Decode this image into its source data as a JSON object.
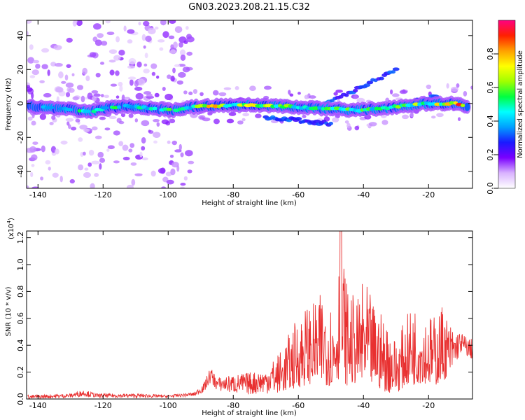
{
  "title": "GN03.2023.208.21.15.C32",
  "colors": {
    "series": "#e83030",
    "axis": "#000000"
  },
  "chart_data": [
    {
      "type": "heatmap",
      "xlabel": "Height of straight line (km)",
      "ylabel": "Frequency (Hz)",
      "xlim": [
        -143.5,
        -6.5
      ],
      "ylim": [
        -50,
        49
      ],
      "xticks": [
        -140,
        -120,
        -100,
        -80,
        -60,
        -40,
        -20
      ],
      "yticks": [
        -40,
        -20,
        0,
        20,
        40
      ],
      "colorbar": {
        "label": "Normalized spectral amplitude",
        "range": [
          0,
          1
        ],
        "ticks": [
          0.0,
          0.2,
          0.4,
          0.6,
          0.8
        ],
        "colormap": [
          "#ffffff",
          "#d9b3ff",
          "#7a00ff",
          "#1a1aff",
          "#00a0ff",
          "#00ffff",
          "#00ff40",
          "#a0ff00",
          "#ffff00",
          "#ffa000",
          "#ff2000",
          "#ff0080"
        ]
      },
      "ridge": [
        {
          "x": -140,
          "f": -2.0,
          "a": 0.35
        },
        {
          "x": -130,
          "f": -3.5,
          "a": 0.45
        },
        {
          "x": -125,
          "f": -5.0,
          "a": 0.55
        },
        {
          "x": -118,
          "f": -2.5,
          "a": 0.5
        },
        {
          "x": -112,
          "f": -1.5,
          "a": 0.55
        },
        {
          "x": -105,
          "f": -3.0,
          "a": 0.5
        },
        {
          "x": -98,
          "f": -4.0,
          "a": 0.55
        },
        {
          "x": -92,
          "f": -2.0,
          "a": 0.6
        },
        {
          "x": -87,
          "f": -1.5,
          "a": 0.78
        },
        {
          "x": -80,
          "f": -1.0,
          "a": 0.68
        },
        {
          "x": -72,
          "f": -1.0,
          "a": 0.7
        },
        {
          "x": -65,
          "f": -1.5,
          "a": 0.6
        },
        {
          "x": -58,
          "f": -2.5,
          "a": 0.6
        },
        {
          "x": -50,
          "f": -3.0,
          "a": 0.55
        },
        {
          "x": -42,
          "f": -4.0,
          "a": 0.6
        },
        {
          "x": -35,
          "f": -3.0,
          "a": 0.55
        },
        {
          "x": -28,
          "f": -1.5,
          "a": 0.6
        },
        {
          "x": -20,
          "f": 0.0,
          "a": 0.65
        },
        {
          "x": -15,
          "f": 0.0,
          "a": 0.8
        },
        {
          "x": -11,
          "f": 0.0,
          "a": 0.92
        },
        {
          "x": -8,
          "f": -1.5,
          "a": 0.75
        }
      ]
    },
    {
      "type": "line",
      "xlabel": "Height of straight line (km)",
      "ylabel": "SNR (10 * v/v)",
      "scale_label": "(x10",
      "scale_exp": "4",
      "scale_close": ")",
      "xlim": [
        -143.5,
        -6.5
      ],
      "ylim": [
        0,
        1.25
      ],
      "xticks": [
        -140,
        -120,
        -100,
        -80,
        -60,
        -40,
        -20
      ],
      "yticks": [
        0.0,
        0.2,
        0.4,
        0.6,
        0.8,
        1.0,
        1.2
      ],
      "envelope": [
        {
          "x": -143,
          "lo": 0.0,
          "hi": 0.03
        },
        {
          "x": -130,
          "lo": 0.01,
          "hi": 0.04
        },
        {
          "x": -126,
          "lo": 0.02,
          "hi": 0.07
        },
        {
          "x": -122,
          "lo": 0.01,
          "hi": 0.04
        },
        {
          "x": -110,
          "lo": 0.01,
          "hi": 0.04
        },
        {
          "x": -100,
          "lo": 0.01,
          "hi": 0.03
        },
        {
          "x": -92,
          "lo": 0.02,
          "hi": 0.05
        },
        {
          "x": -89,
          "lo": 0.05,
          "hi": 0.12
        },
        {
          "x": -87,
          "lo": 0.12,
          "hi": 0.24
        },
        {
          "x": -85,
          "lo": 0.06,
          "hi": 0.16
        },
        {
          "x": -80,
          "lo": 0.04,
          "hi": 0.18
        },
        {
          "x": -75,
          "lo": 0.03,
          "hi": 0.2
        },
        {
          "x": -70,
          "lo": 0.04,
          "hi": 0.22
        },
        {
          "x": -65,
          "lo": 0.05,
          "hi": 0.38
        },
        {
          "x": -61,
          "lo": 0.08,
          "hi": 0.58
        },
        {
          "x": -58,
          "lo": 0.1,
          "hi": 0.7
        },
        {
          "x": -55,
          "lo": 0.12,
          "hi": 0.72
        },
        {
          "x": -52,
          "lo": 0.1,
          "hi": 0.82
        },
        {
          "x": -49,
          "lo": 0.1,
          "hi": 0.68
        },
        {
          "x": -47,
          "lo": 0.15,
          "hi": 1.25
        },
        {
          "x": -45,
          "lo": 0.1,
          "hi": 0.85
        },
        {
          "x": -42,
          "lo": 0.12,
          "hi": 0.72
        },
        {
          "x": -40,
          "lo": 0.08,
          "hi": 0.9
        },
        {
          "x": -37,
          "lo": 0.1,
          "hi": 0.72
        },
        {
          "x": -33,
          "lo": 0.05,
          "hi": 0.6
        },
        {
          "x": -30,
          "lo": 0.04,
          "hi": 0.45
        },
        {
          "x": -27,
          "lo": 0.1,
          "hi": 0.6
        },
        {
          "x": -25,
          "lo": 0.1,
          "hi": 0.72
        },
        {
          "x": -22,
          "lo": 0.12,
          "hi": 0.65
        },
        {
          "x": -18,
          "lo": 0.1,
          "hi": 0.62
        },
        {
          "x": -16,
          "lo": 0.12,
          "hi": 0.72
        },
        {
          "x": -13,
          "lo": 0.2,
          "hi": 0.55
        },
        {
          "x": -10,
          "lo": 0.35,
          "hi": 0.5
        },
        {
          "x": -7,
          "lo": 0.3,
          "hi": 0.45
        }
      ]
    }
  ]
}
